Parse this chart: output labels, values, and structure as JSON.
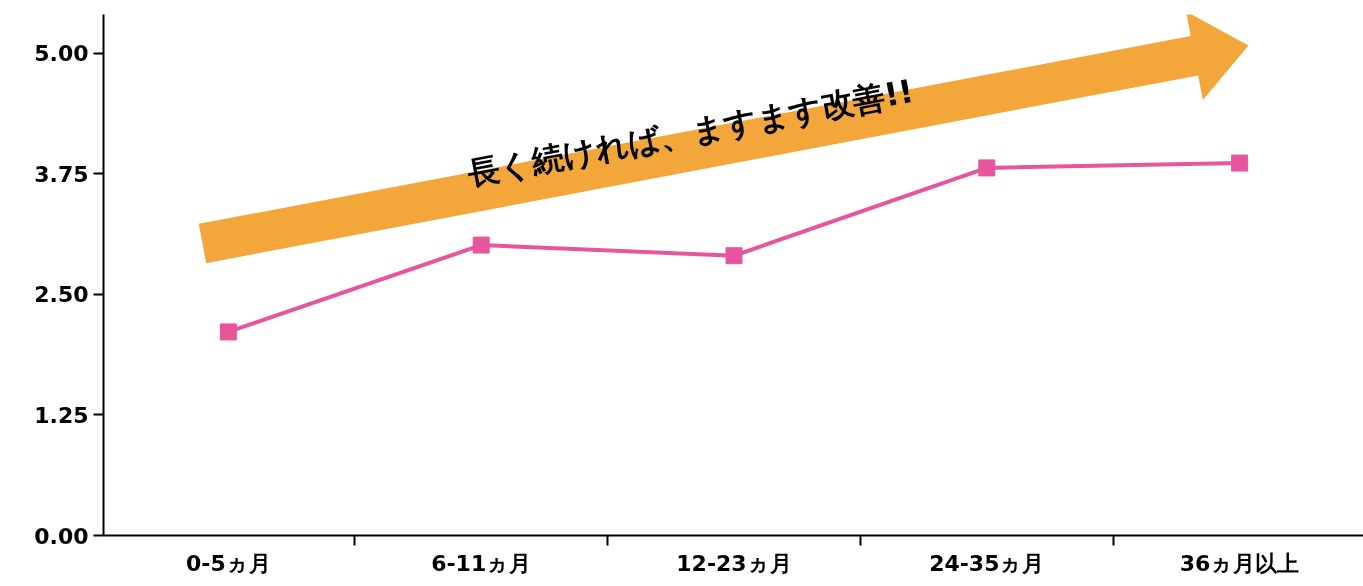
{
  "chart_data": {
    "type": "line",
    "categories": [
      "0-5ヵ月",
      "6-11ヵ月",
      "12-23ヵ月",
      "24-35ヵ月",
      "36ヵ月以上"
    ],
    "series": [
      {
        "color": "#e8559f",
        "values": [
          2.11,
          3.01,
          2.9,
          3.81,
          3.86
        ]
      }
    ],
    "ylim": [
      0,
      5.4
    ],
    "yticks": [
      {
        "value": 0,
        "label": "0.00"
      },
      {
        "value": 1.25,
        "label": "1.25"
      },
      {
        "value": 2.5,
        "label": "2.50"
      },
      {
        "value": 3.75,
        "label": "3.75"
      },
      {
        "value": 5,
        "label": "5.00"
      }
    ],
    "grid": false,
    "marker": "square",
    "line_style": "solid",
    "annotations": [
      "長く続ければ、ますます改善!!"
    ]
  }
}
